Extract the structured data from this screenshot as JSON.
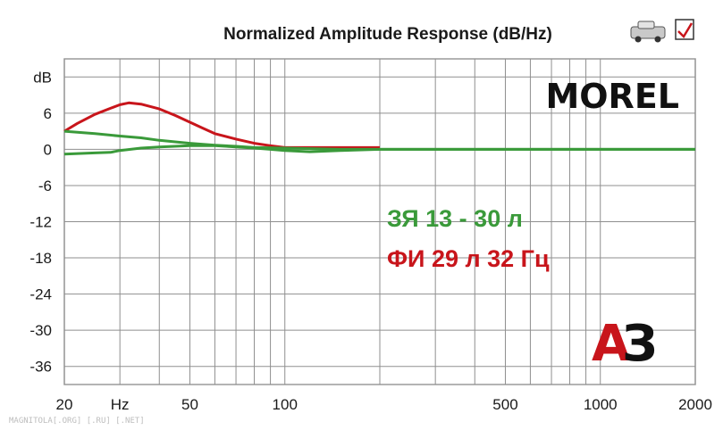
{
  "chart_data": {
    "type": "line",
    "title": "Normalized Amplitude Response (dB/Hz)",
    "ylabel": "dB",
    "xlabel": "",
    "x_scale": "log",
    "xlim": [
      20,
      2000
    ],
    "ylim": [
      -39,
      15
    ],
    "grid": true,
    "y_ticks": [
      {
        "value": 12,
        "label": "dB"
      },
      {
        "value": 6,
        "label": "6"
      },
      {
        "value": 0,
        "label": "0"
      },
      {
        "value": -6,
        "label": "-6"
      },
      {
        "value": -12,
        "label": "-12"
      },
      {
        "value": -18,
        "label": "-18"
      },
      {
        "value": -24,
        "label": "-24"
      },
      {
        "value": -30,
        "label": "-30"
      },
      {
        "value": -36,
        "label": "-36"
      }
    ],
    "x_ticks": [
      {
        "value": 20,
        "label": "20"
      },
      {
        "value": 30,
        "label": "Hz"
      },
      {
        "value": 50,
        "label": "50"
      },
      {
        "value": 100,
        "label": "100"
      },
      {
        "value": 500,
        "label": "500"
      },
      {
        "value": 1000,
        "label": "1000"
      },
      {
        "value": 2000,
        "label": "2000"
      }
    ],
    "x_gridlines": [
      20,
      30,
      40,
      50,
      60,
      70,
      80,
      90,
      100,
      200,
      300,
      400,
      500,
      600,
      700,
      800,
      900,
      1000,
      2000
    ],
    "series": [
      {
        "name": "ФИ 29 л 32 Гц",
        "color": "#c8151b",
        "points": [
          [
            20,
            3.0
          ],
          [
            22,
            4.3
          ],
          [
            25,
            5.8
          ],
          [
            28,
            6.8
          ],
          [
            30,
            7.4
          ],
          [
            32,
            7.7
          ],
          [
            35,
            7.5
          ],
          [
            40,
            6.7
          ],
          [
            45,
            5.6
          ],
          [
            50,
            4.5
          ],
          [
            55,
            3.5
          ],
          [
            60,
            2.6
          ],
          [
            70,
            1.7
          ],
          [
            80,
            1.0
          ],
          [
            90,
            0.6
          ],
          [
            100,
            0.3
          ],
          [
            150,
            0.3
          ],
          [
            200,
            0.3
          ]
        ]
      },
      {
        "name": "ЗЯ 13 - 30 л",
        "color": "#3a9a3a",
        "points": [
          [
            20,
            3.0
          ],
          [
            25,
            2.6
          ],
          [
            30,
            2.2
          ],
          [
            35,
            1.9
          ],
          [
            40,
            1.5
          ],
          [
            50,
            1.0
          ],
          [
            60,
            0.7
          ],
          [
            70,
            0.5
          ],
          [
            80,
            0.3
          ],
          [
            100,
            0.2
          ],
          [
            150,
            0.0
          ],
          [
            200,
            0.0
          ],
          [
            2000,
            0.0
          ]
        ]
      },
      {
        "color": "#3a9a3a",
        "points": [
          [
            20,
            -0.8
          ],
          [
            25,
            -0.6
          ],
          [
            28,
            -0.5
          ],
          [
            30,
            -0.2
          ],
          [
            35,
            0.2
          ],
          [
            40,
            0.4
          ],
          [
            50,
            0.6
          ],
          [
            60,
            0.6
          ],
          [
            70,
            0.4
          ],
          [
            80,
            0.2
          ],
          [
            90,
            0.0
          ],
          [
            100,
            -0.2
          ],
          [
            120,
            -0.4
          ],
          [
            150,
            -0.2
          ],
          [
            200,
            0.0
          ],
          [
            2000,
            0.0
          ]
        ]
      }
    ]
  },
  "brand": "MOREL",
  "legend": [
    {
      "text": "ЗЯ 13 - 30 л",
      "color": "#3a9a3a"
    },
    {
      "text": "ФИ 29 л 32 Гц",
      "color": "#c8151b"
    }
  ],
  "logo": {
    "letter1": "А",
    "letter2": "З"
  },
  "watermark": "MAGNITOLA[.ORG] [.RU] [.NET]"
}
